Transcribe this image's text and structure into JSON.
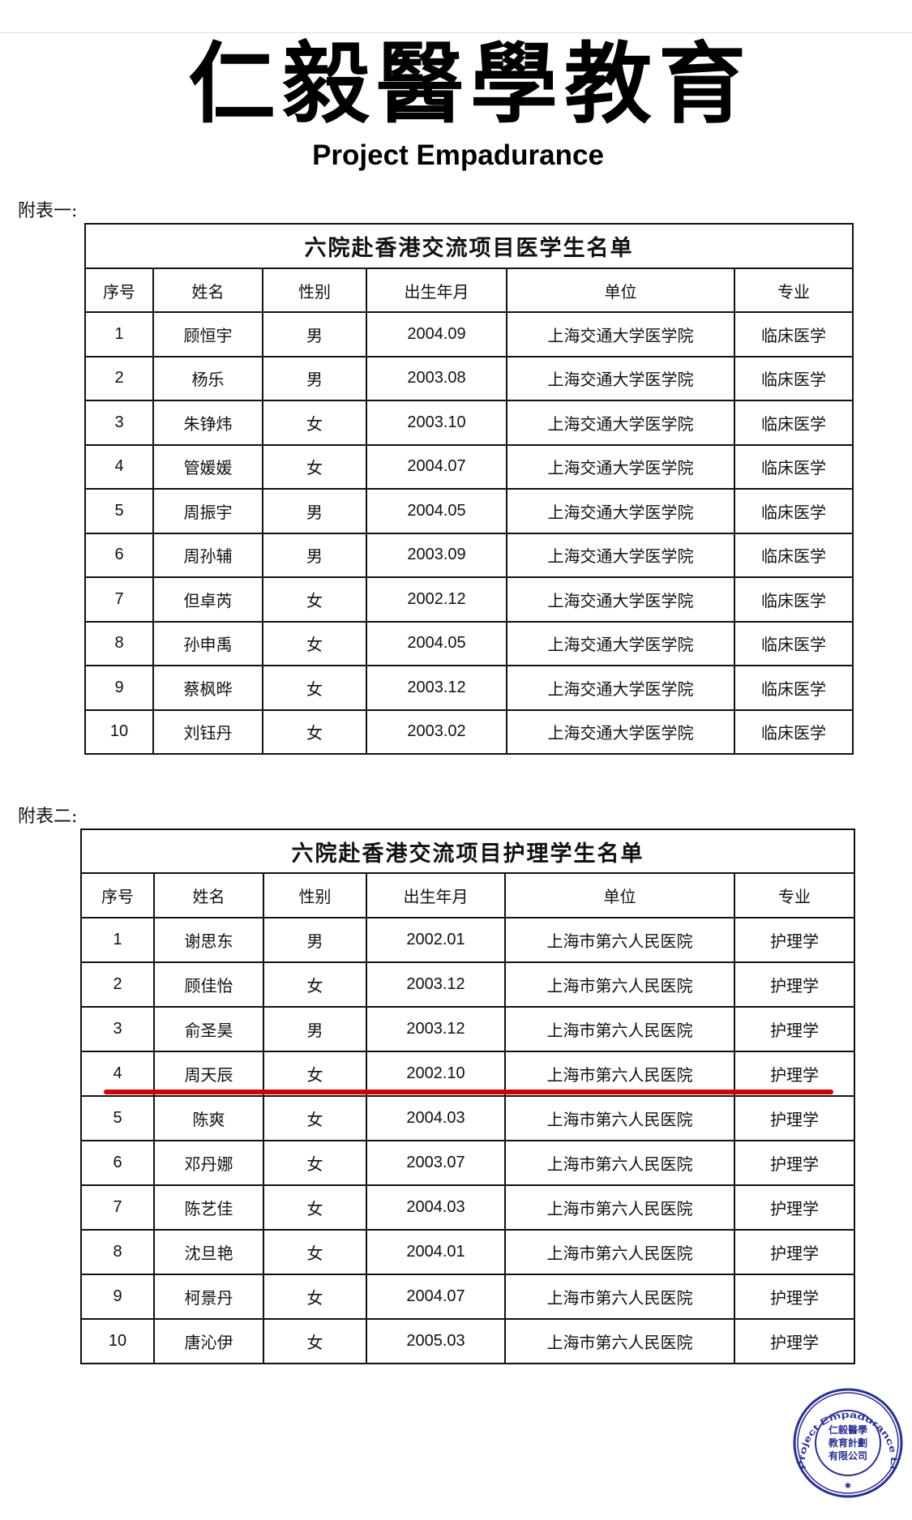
{
  "logo": {
    "chinese": "仁毅醫學教育",
    "english": "Project Empadurance"
  },
  "table1": {
    "caption": "附表一:",
    "title": "六院赴香港交流项目医学生名单",
    "headers": [
      "序号",
      "姓名",
      "性别",
      "出生年月",
      "单位",
      "专业"
    ],
    "rows": [
      [
        "1",
        "顾恒宇",
        "男",
        "2004.09",
        "上海交通大学医学院",
        "临床医学"
      ],
      [
        "2",
        "杨乐",
        "男",
        "2003.08",
        "上海交通大学医学院",
        "临床医学"
      ],
      [
        "3",
        "朱铮炜",
        "女",
        "2003.10",
        "上海交通大学医学院",
        "临床医学"
      ],
      [
        "4",
        "管媛媛",
        "女",
        "2004.07",
        "上海交通大学医学院",
        "临床医学"
      ],
      [
        "5",
        "周振宇",
        "男",
        "2004.05",
        "上海交通大学医学院",
        "临床医学"
      ],
      [
        "6",
        "周孙辅",
        "男",
        "2003.09",
        "上海交通大学医学院",
        "临床医学"
      ],
      [
        "7",
        "但卓芮",
        "女",
        "2002.12",
        "上海交通大学医学院",
        "临床医学"
      ],
      [
        "8",
        "孙申禹",
        "女",
        "2004.05",
        "上海交通大学医学院",
        "临床医学"
      ],
      [
        "9",
        "蔡枫晔",
        "女",
        "2003.12",
        "上海交通大学医学院",
        "临床医学"
      ],
      [
        "10",
        "刘钰丹",
        "女",
        "2003.02",
        "上海交通大学医学院",
        "临床医学"
      ]
    ]
  },
  "table2": {
    "caption": "附表二:",
    "title": "六院赴香港交流项目护理学生名单",
    "headers": [
      "序号",
      "姓名",
      "性别",
      "出生年月",
      "单位",
      "专业"
    ],
    "rows": [
      [
        "1",
        "谢思东",
        "男",
        "2002.01",
        "上海市第六人民医院",
        "护理学"
      ],
      [
        "2",
        "顾佳怡",
        "女",
        "2003.12",
        "上海市第六人民医院",
        "护理学"
      ],
      [
        "3",
        "俞圣昊",
        "男",
        "2003.12",
        "上海市第六人民医院",
        "护理学"
      ],
      [
        "4",
        "周天辰",
        "女",
        "2002.10",
        "上海市第六人民医院",
        "护理学"
      ],
      [
        "5",
        "陈爽",
        "女",
        "2004.03",
        "上海市第六人民医院",
        "护理学"
      ],
      [
        "6",
        "邓丹娜",
        "女",
        "2003.07",
        "上海市第六人民医院",
        "护理学"
      ],
      [
        "7",
        "陈艺佳",
        "女",
        "2004.03",
        "上海市第六人民医院",
        "护理学"
      ],
      [
        "8",
        "沈旦艳",
        "女",
        "2004.01",
        "上海市第六人民医院",
        "护理学"
      ],
      [
        "9",
        "柯景丹",
        "女",
        "2004.07",
        "上海市第六人民医院",
        "护理学"
      ],
      [
        "10",
        "唐沁伊",
        "女",
        "2005.03",
        "上海市第六人民医院",
        "护理学"
      ]
    ]
  },
  "stamp": {
    "ring_text": "Project Empadurance Limited",
    "center_text": [
      "仁毅醫學",
      "教育計劃",
      "有限公司"
    ],
    "color": "#2b2f8f"
  },
  "highlight_color": "#c00000"
}
